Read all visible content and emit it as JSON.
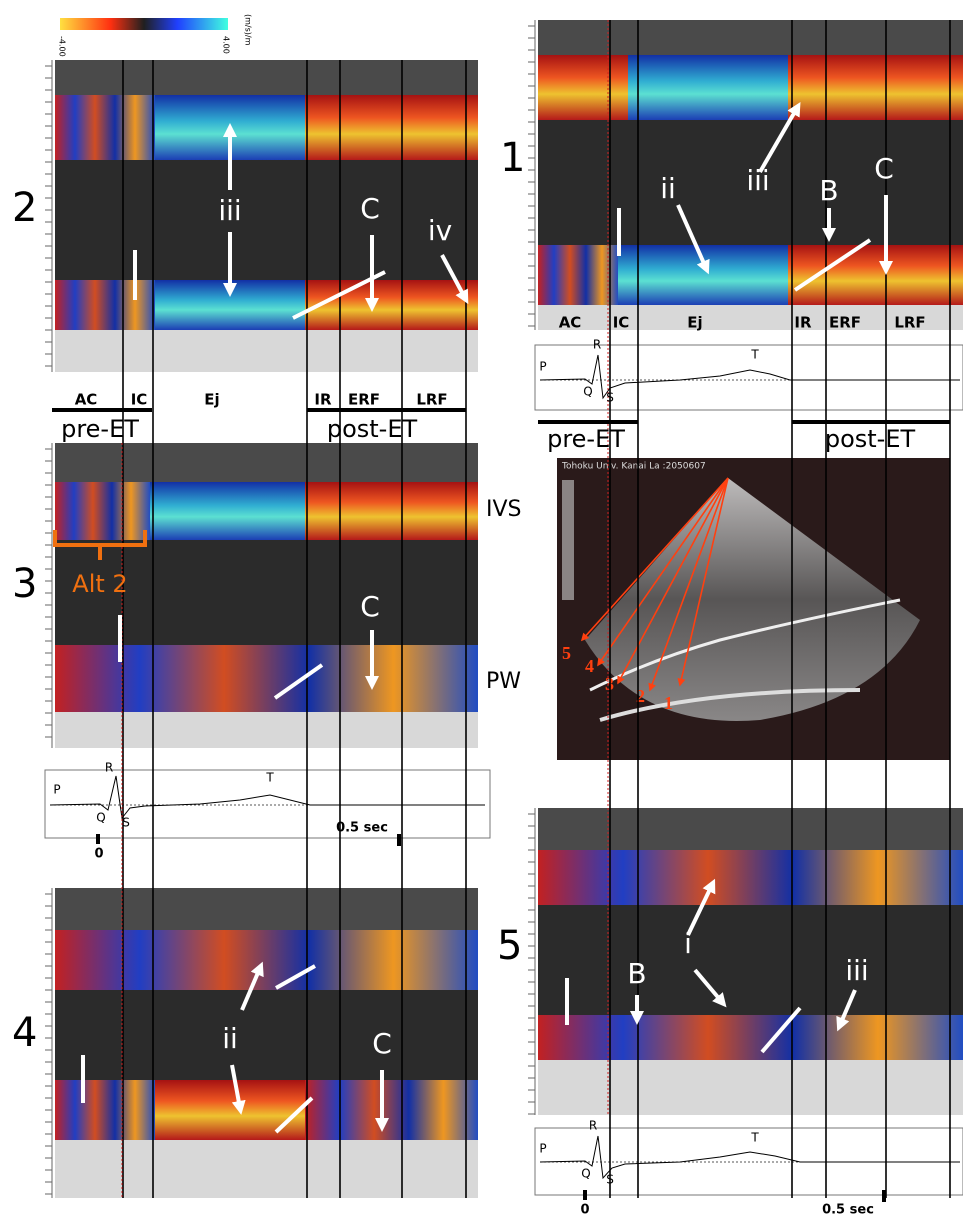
{
  "colorbar": {
    "min": "-4.00",
    "max": "4.00",
    "unit": "(m/s)/m"
  },
  "panels": [
    {
      "number": "1",
      "phases": [
        "AC",
        "IC",
        "Ej",
        "IR",
        "ERF",
        "LRF"
      ],
      "periods": [
        "pre-ET",
        "post-ET"
      ],
      "annotations": [
        "iii",
        "ii",
        "B",
        "C"
      ],
      "ecg": [
        "P",
        "R",
        "Q",
        "S",
        "T"
      ]
    },
    {
      "number": "2",
      "phases": [
        "AC",
        "IC",
        "Ej",
        "IR",
        "ERF",
        "LRF"
      ],
      "periods": [
        "pre-ET",
        "post-ET"
      ],
      "annotations": [
        "iii",
        "C",
        "iv"
      ]
    },
    {
      "number": "3",
      "annotations": [
        "C",
        "Alt 2"
      ],
      "walls": [
        "IVS",
        "PW"
      ],
      "ecg": [
        "P",
        "R",
        "Q",
        "S",
        "T"
      ],
      "time": [
        "0",
        "0.5 sec"
      ]
    },
    {
      "number": "4",
      "annotations": [
        "ii",
        "C"
      ]
    },
    {
      "number": "5",
      "annotations": [
        "i",
        "B",
        "iii"
      ],
      "ecg": [
        "P",
        "R",
        "Q",
        "S",
        "T"
      ],
      "time": [
        "0",
        "0.5 sec"
      ]
    }
  ],
  "echo": {
    "header": "Tohoku Univ. Kanai La :2050607",
    "beams": [
      "5",
      "4",
      "3",
      "2",
      "1"
    ]
  }
}
